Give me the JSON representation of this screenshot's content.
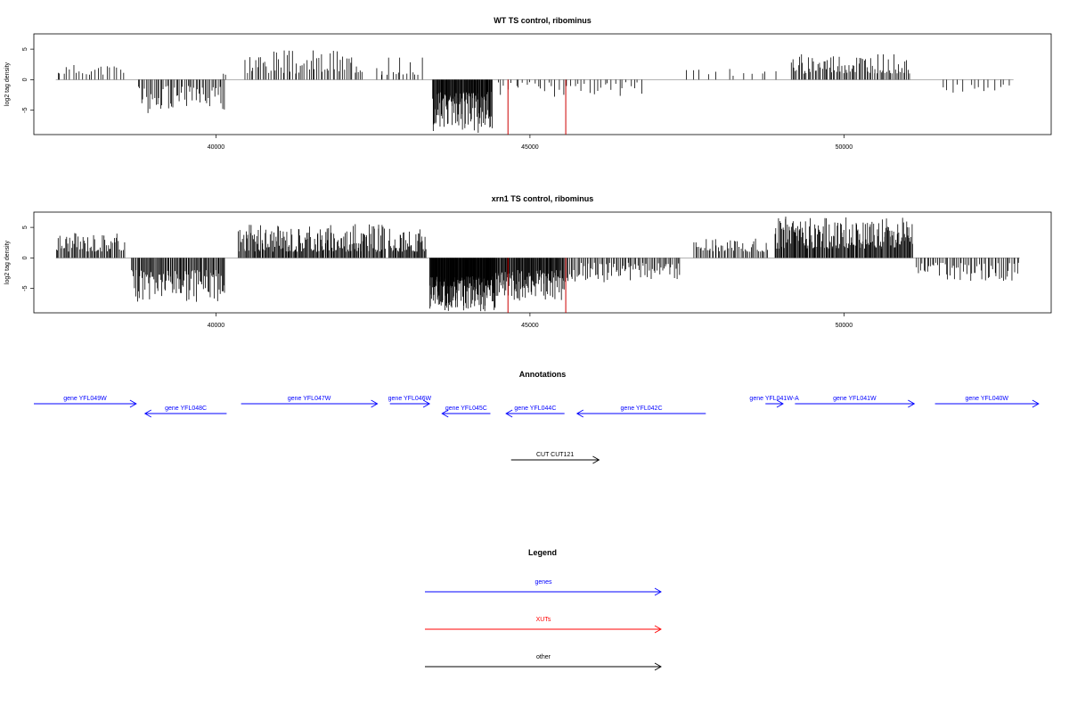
{
  "chart_data": [
    {
      "type": "bar",
      "title": "WT TS control, ribominus",
      "ylabel": "log2 tag density",
      "xlabel": "",
      "xlim": [
        37100,
        53300
      ],
      "ylim": [
        -9,
        7.5
      ],
      "xticks": [
        40000,
        45000,
        50000
      ],
      "yticks": [
        5,
        0,
        -5
      ],
      "series_color": "#000000",
      "highlight_color": "#cc0000",
      "highlights": [
        {
          "x": 44650,
          "y": -9.0
        },
        {
          "x": 45570,
          "y": -9.0
        }
      ],
      "segments": [
        {
          "start": 37450,
          "end": 38550,
          "count": 22,
          "min": 0.8,
          "max": 2.5,
          "seed": 11
        },
        {
          "start": 38750,
          "end": 40150,
          "count": 55,
          "min": -5.5,
          "max": -1.0,
          "seed": 12
        },
        {
          "start": 40100,
          "end": 40170,
          "count": 2,
          "min": 0.8,
          "max": 1.0,
          "seed": 13
        },
        {
          "start": 40450,
          "end": 42350,
          "count": 60,
          "min": 1.0,
          "max": 4.8,
          "seed": 14
        },
        {
          "start": 42550,
          "end": 43300,
          "count": 16,
          "min": 0.8,
          "max": 3.8,
          "seed": 15
        },
        {
          "start": 43450,
          "end": 44400,
          "count": 110,
          "min": -8.8,
          "max": -2.0,
          "seed": 16
        },
        {
          "start": 44450,
          "end": 46800,
          "count": 40,
          "min": -2.8,
          "max": -0.4,
          "seed": 17
        },
        {
          "start": 47400,
          "end": 49000,
          "count": 12,
          "min": 0.5,
          "max": 1.8,
          "seed": 18
        },
        {
          "start": 49150,
          "end": 51050,
          "count": 85,
          "min": 1.0,
          "max": 4.2,
          "seed": 19
        },
        {
          "start": 51550,
          "end": 52700,
          "count": 14,
          "min": -2.2,
          "max": -0.8,
          "seed": 20
        }
      ]
    },
    {
      "type": "bar",
      "title": "xrn1 TS control, ribominus",
      "ylabel": "log2 tag density",
      "xlabel": "",
      "xlim": [
        37100,
        53300
      ],
      "ylim": [
        -9,
        7.5
      ],
      "xticks": [
        40000,
        45000,
        50000
      ],
      "yticks": [
        5,
        0,
        -5
      ],
      "series_color": "#000000",
      "highlight_color": "#cc0000",
      "highlights": [
        {
          "x": 44650,
          "y": -9.0
        },
        {
          "x": 45570,
          "y": -9.0
        }
      ],
      "segments": [
        {
          "start": 37450,
          "end": 38550,
          "count": 60,
          "min": 1.0,
          "max": 4.2,
          "seed": 31
        },
        {
          "start": 38650,
          "end": 40150,
          "count": 100,
          "min": -7.2,
          "max": -2.0,
          "seed": 32
        },
        {
          "start": 40350,
          "end": 42700,
          "count": 170,
          "min": 1.0,
          "max": 5.6,
          "seed": 33
        },
        {
          "start": 42750,
          "end": 43350,
          "count": 45,
          "min": 1.0,
          "max": 4.8,
          "seed": 34
        },
        {
          "start": 43400,
          "end": 44450,
          "count": 170,
          "min": -8.8,
          "max": -3.0,
          "seed": 35
        },
        {
          "start": 44450,
          "end": 45550,
          "count": 110,
          "min": -7.0,
          "max": -2.0,
          "seed": 36
        },
        {
          "start": 45550,
          "end": 47400,
          "count": 80,
          "min": -4.0,
          "max": -0.8,
          "seed": 37
        },
        {
          "start": 47600,
          "end": 48800,
          "count": 50,
          "min": 1.0,
          "max": 3.2,
          "seed": 38
        },
        {
          "start": 48900,
          "end": 51100,
          "count": 180,
          "min": 1.5,
          "max": 6.8,
          "seed": 39
        },
        {
          "start": 51150,
          "end": 52800,
          "count": 60,
          "min": -3.8,
          "max": -0.8,
          "seed": 40
        }
      ]
    }
  ],
  "annotations": {
    "title": "Annotations",
    "color_gene": "#0000ff",
    "color_other": "#000000",
    "features": [
      {
        "label": "gene YFL049W",
        "start": 37100,
        "end": 38730,
        "strand": "+",
        "row": 0,
        "type": "gene"
      },
      {
        "label": "gene YFL048C",
        "start": 38870,
        "end": 40170,
        "strand": "-",
        "row": 1,
        "type": "gene"
      },
      {
        "label": "gene YFL047W",
        "start": 40400,
        "end": 42570,
        "strand": "+",
        "row": 0,
        "type": "gene"
      },
      {
        "label": "gene YFL046W",
        "start": 42770,
        "end": 43400,
        "strand": "+",
        "row": 0,
        "type": "gene"
      },
      {
        "label": "gene YFL045C",
        "start": 43600,
        "end": 44370,
        "strand": "-",
        "row": 1,
        "type": "gene"
      },
      {
        "label": "gene YFL044C",
        "start": 44620,
        "end": 45550,
        "strand": "-",
        "row": 1,
        "type": "gene"
      },
      {
        "label": "gene YFL042C",
        "start": 45750,
        "end": 47800,
        "strand": "-",
        "row": 1,
        "type": "gene"
      },
      {
        "label": "gene YFL041W-A",
        "start": 48750,
        "end": 49030,
        "strand": "+",
        "row": 0,
        "type": "gene"
      },
      {
        "label": "gene YFL041W",
        "start": 49220,
        "end": 51120,
        "strand": "+",
        "row": 0,
        "type": "gene"
      },
      {
        "label": "gene YFL040W",
        "start": 51450,
        "end": 53100,
        "strand": "+",
        "row": 0,
        "type": "gene"
      },
      {
        "label": "CUT CUT121",
        "start": 44700,
        "end": 46100,
        "strand": "+",
        "row": 2,
        "type": "other"
      }
    ]
  },
  "legend": {
    "title": "Legend",
    "items": [
      {
        "label": "genes",
        "color": "#0000ff"
      },
      {
        "label": "XUTs",
        "color": "#ff0000"
      },
      {
        "label": "other",
        "color": "#000000"
      }
    ]
  }
}
